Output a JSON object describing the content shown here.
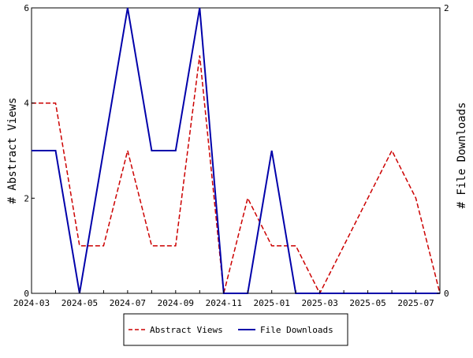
{
  "chart_data": {
    "type": "line",
    "x": [
      "2024-03",
      "2024-04",
      "2024-05",
      "2024-06",
      "2024-07",
      "2024-08",
      "2024-09",
      "2024-10",
      "2024-11",
      "2024-12",
      "2025-01",
      "2025-02",
      "2025-03",
      "2025-04",
      "2025-05",
      "2025-06",
      "2025-07",
      "2025-08"
    ],
    "x_tick_labels": [
      "2024-03",
      "2024-05",
      "2024-07",
      "2024-09",
      "2024-11",
      "2025-01",
      "2025-03",
      "2025-05",
      "2025-07"
    ],
    "series": [
      {
        "name": "Abstract Views",
        "axis": "left",
        "color": "#cc0000",
        "style": "dashed",
        "values": [
          4,
          4,
          1,
          1,
          3,
          1,
          1,
          5,
          0,
          2,
          1,
          1,
          0,
          1,
          2,
          3,
          2,
          0
        ]
      },
      {
        "name": "File Downloads",
        "axis": "right",
        "color": "#0000aa",
        "style": "solid",
        "values": [
          1,
          1,
          0,
          1,
          2,
          1,
          1,
          2,
          0,
          0,
          1,
          0,
          0,
          0,
          0,
          0,
          0,
          0
        ]
      }
    ],
    "ylabel": "# Abstract Views",
    "ylim": [
      0,
      6
    ],
    "y_ticks": [
      "0",
      "2",
      "4",
      "6"
    ],
    "y2label": "# File Downloads",
    "y2lim": [
      0,
      2
    ],
    "y2_ticks": [
      "0",
      "2"
    ],
    "grid": false,
    "legend_position": "bottom-center"
  }
}
